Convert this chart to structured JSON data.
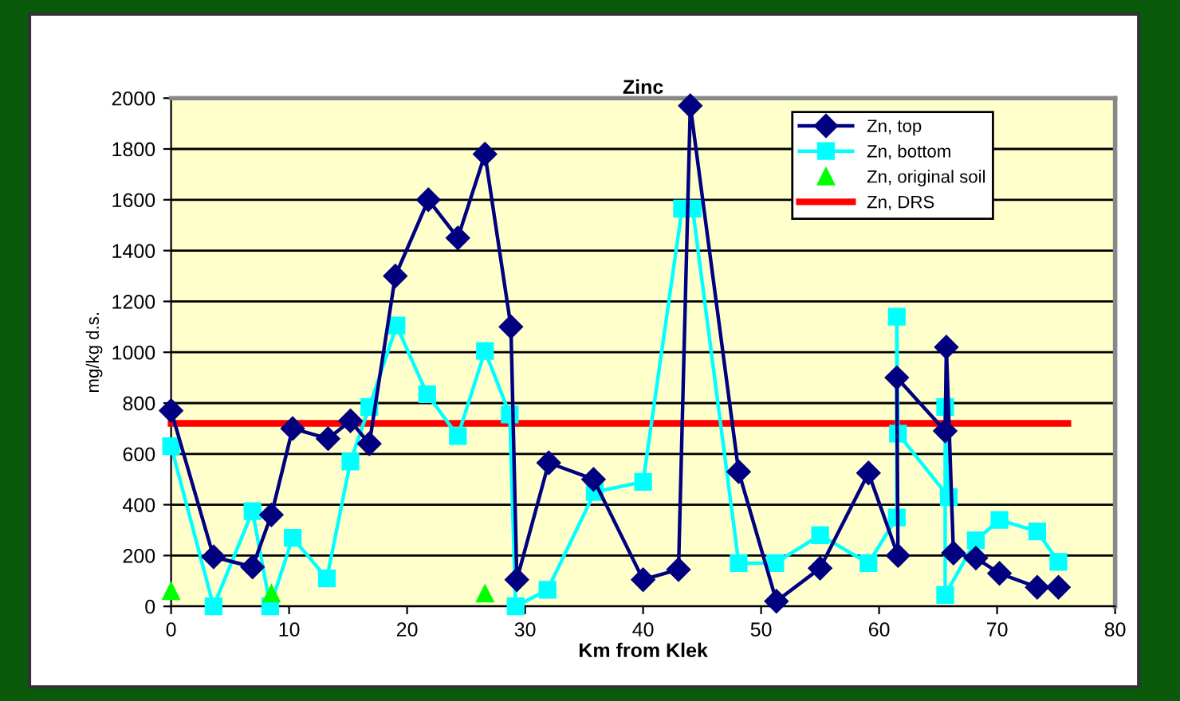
{
  "chart_data": {
    "type": "line",
    "title": "Zinc",
    "xlabel": "Km from Klek",
    "ylabel": "mg/kg d.s.",
    "xlim": [
      0,
      80
    ],
    "xticks": [
      0,
      10,
      20,
      30,
      40,
      50,
      60,
      70,
      80
    ],
    "ylim": [
      0,
      2000
    ],
    "yticks": [
      0,
      200,
      400,
      600,
      800,
      1000,
      1200,
      1400,
      1600,
      1800,
      2000
    ],
    "grid": "y",
    "legend": "top right",
    "series": [
      {
        "name": "Zn, top",
        "color": "#000080",
        "marker": "diamond",
        "x": [
          0,
          3.6,
          6.9,
          8.5,
          10.3,
          13.3,
          15.2,
          16.8,
          19.0,
          21.8,
          24.3,
          26.6,
          28.8,
          29.3,
          32.0,
          35.8,
          40.0,
          43.0,
          44.0,
          48.1,
          51.3,
          55.0,
          59.1,
          61.6,
          61.5,
          65.6,
          65.7,
          66.3,
          68.2,
          70.2,
          73.4,
          75.2
        ],
        "values": [
          770,
          195,
          155,
          360,
          700,
          660,
          730,
          640,
          1300,
          1600,
          1450,
          1780,
          1100,
          105,
          565,
          500,
          105,
          145,
          1970,
          530,
          20,
          150,
          525,
          200,
          900,
          690,
          1020,
          210,
          190,
          130,
          75,
          75
        ]
      },
      {
        "name": "Zn, bottom",
        "color": "#00ffff",
        "marker": "square",
        "x": [
          0,
          3.6,
          6.9,
          8.4,
          10.3,
          13.2,
          15.2,
          16.8,
          19.1,
          21.7,
          24.3,
          26.6,
          28.7,
          29.2,
          31.9,
          35.9,
          40.0,
          43.3,
          44.2,
          48.1,
          51.2,
          55.0,
          59.1,
          61.5,
          61.5,
          61.6,
          65.9,
          65.6,
          65.6,
          68.2,
          70.2,
          73.4,
          75.2
        ],
        "values": [
          630,
          0,
          375,
          0,
          270,
          110,
          570,
          785,
          1105,
          835,
          670,
          1005,
          755,
          0,
          65,
          450,
          490,
          1565,
          1565,
          170,
          170,
          280,
          170,
          350,
          1140,
          680,
          430,
          785,
          45,
          260,
          340,
          295,
          175
        ]
      },
      {
        "name": "Zn, original soil",
        "type": "scatter",
        "color": "#00ff00",
        "marker": "triangle",
        "x": [
          0,
          8.5,
          26.6
        ],
        "values": [
          60,
          50,
          50
        ]
      },
      {
        "name": "Zn, DRS",
        "color": "#ff0000",
        "marker": "none",
        "x": [
          0,
          76
        ],
        "values": [
          720,
          720
        ]
      }
    ]
  }
}
